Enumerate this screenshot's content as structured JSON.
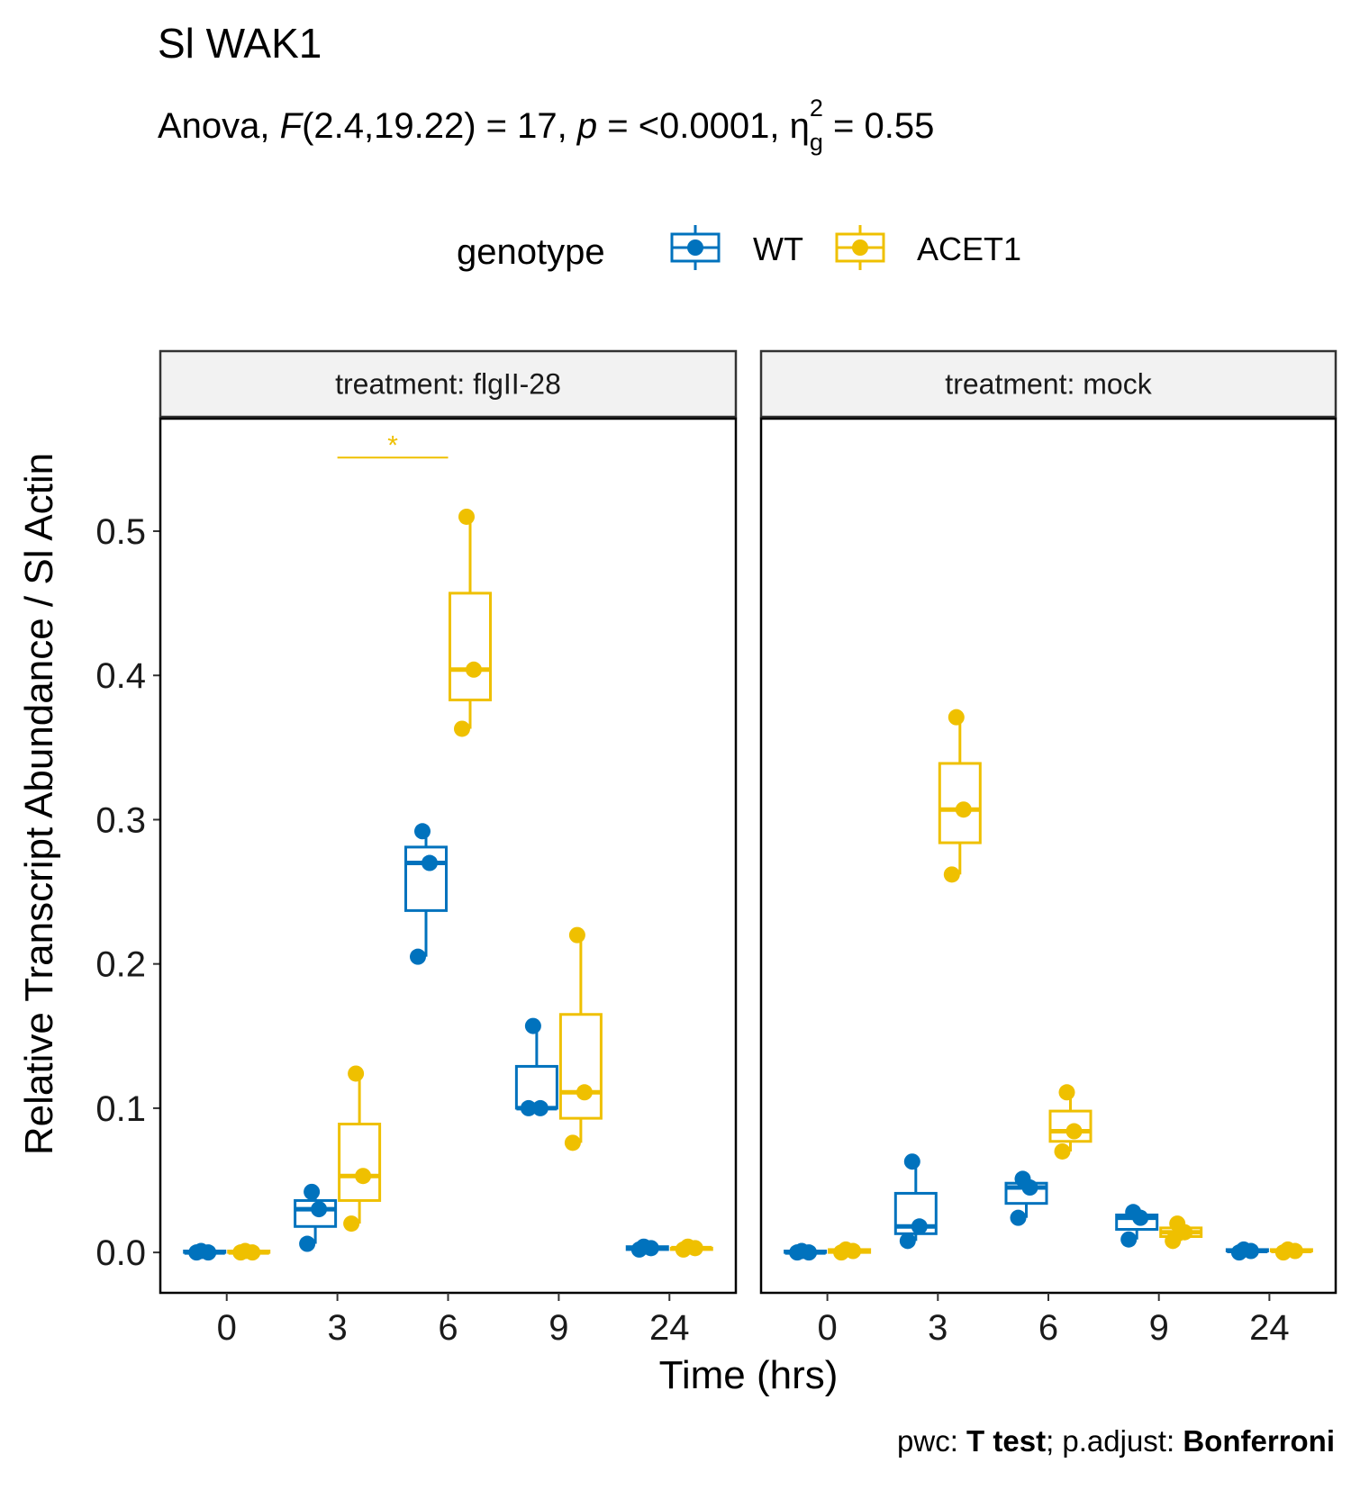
{
  "chart_data": {
    "type": "box",
    "title": "Sl WAK1",
    "subtitle": {
      "prefix": "Anova, ",
      "stat_symbol": "F",
      "df": "(2.4,19.22) = 17, ",
      "p_symbol": "p",
      "p_text": " = <0.0001, ",
      "eta_symbol": "η",
      "eta_sub": "g",
      "eta_sup": "2",
      "eta_text": " = 0.55"
    },
    "legend": {
      "title": "genotype",
      "placement": "top",
      "entries": [
        {
          "label": "WT",
          "color": "#0072BD"
        },
        {
          "label": "ACET1",
          "color": "#EFC000"
        }
      ]
    },
    "xlabel": "Time (hrs)",
    "ylabel": "Relative Transcript Abundance / Sl Actin",
    "categories": [
      "0",
      "3",
      "6",
      "9",
      "24"
    ],
    "yticks": [
      "0.0",
      "0.1",
      "0.2",
      "0.3",
      "0.4",
      "0.5"
    ],
    "ylim": [
      -0.028,
      0.578
    ],
    "colors": {
      "WT": "#0072BD",
      "ACET1": "#EFC000"
    },
    "facets": [
      {
        "label": "treatment: flgII-28",
        "groups": [
          {
            "time": "0",
            "genotype": "WT",
            "points": [
              0.0,
              0.0,
              0.001
            ],
            "box": [
              0.0,
              0.0,
              0.0,
              0.001,
              0.001
            ]
          },
          {
            "time": "0",
            "genotype": "ACET1",
            "points": [
              0.0,
              0.0,
              0.001
            ],
            "box": [
              0.0,
              0.0,
              0.0,
              0.001,
              0.001
            ]
          },
          {
            "time": "3",
            "genotype": "WT",
            "points": [
              0.006,
              0.03,
              0.042
            ],
            "box": [
              0.006,
              0.018,
              0.03,
              0.036,
              0.042
            ]
          },
          {
            "time": "3",
            "genotype": "ACET1",
            "points": [
              0.02,
              0.053,
              0.124
            ],
            "box": [
              0.02,
              0.036,
              0.053,
              0.089,
              0.124
            ]
          },
          {
            "time": "6",
            "genotype": "WT",
            "points": [
              0.205,
              0.27,
              0.292
            ],
            "box": [
              0.205,
              0.237,
              0.27,
              0.281,
              0.292
            ]
          },
          {
            "time": "6",
            "genotype": "ACET1",
            "points": [
              0.363,
              0.404,
              0.51
            ],
            "box": [
              0.363,
              0.383,
              0.404,
              0.457,
              0.51
            ]
          },
          {
            "time": "9",
            "genotype": "WT",
            "points": [
              0.1,
              0.1,
              0.157
            ],
            "box": [
              0.1,
              0.1,
              0.1,
              0.129,
              0.157
            ]
          },
          {
            "time": "9",
            "genotype": "ACET1",
            "points": [
              0.076,
              0.111,
              0.22
            ],
            "box": [
              0.076,
              0.093,
              0.111,
              0.165,
              0.22
            ]
          },
          {
            "time": "24",
            "genotype": "WT",
            "points": [
              0.002,
              0.003,
              0.004
            ],
            "box": [
              0.002,
              0.002,
              0.003,
              0.004,
              0.004
            ]
          },
          {
            "time": "24",
            "genotype": "ACET1",
            "points": [
              0.002,
              0.003,
              0.004
            ],
            "box": [
              0.002,
              0.002,
              0.003,
              0.003,
              0.004
            ]
          }
        ],
        "significance": [
          {
            "from": "3",
            "to": "6",
            "genotype": "ACET1",
            "label": "*",
            "y": 0.551
          }
        ]
      },
      {
        "label": "treatment: mock",
        "groups": [
          {
            "time": "0",
            "genotype": "WT",
            "points": [
              0.0,
              0.0,
              0.001
            ],
            "box": [
              0.0,
              0.0,
              0.0,
              0.001,
              0.001
            ]
          },
          {
            "time": "0",
            "genotype": "ACET1",
            "points": [
              0.0,
              0.001,
              0.002
            ],
            "box": [
              0.0,
              0.0,
              0.001,
              0.002,
              0.002
            ]
          },
          {
            "time": "3",
            "genotype": "WT",
            "points": [
              0.008,
              0.018,
              0.063
            ],
            "box": [
              0.008,
              0.013,
              0.018,
              0.041,
              0.063
            ]
          },
          {
            "time": "3",
            "genotype": "ACET1",
            "points": [
              0.262,
              0.307,
              0.371
            ],
            "box": [
              0.262,
              0.284,
              0.307,
              0.339,
              0.371
            ]
          },
          {
            "time": "6",
            "genotype": "WT",
            "points": [
              0.024,
              0.045,
              0.051
            ],
            "box": [
              0.024,
              0.034,
              0.045,
              0.048,
              0.051
            ]
          },
          {
            "time": "6",
            "genotype": "ACET1",
            "points": [
              0.07,
              0.084,
              0.111
            ],
            "box": [
              0.07,
              0.077,
              0.084,
              0.098,
              0.111
            ]
          },
          {
            "time": "9",
            "genotype": "WT",
            "points": [
              0.009,
              0.024,
              0.028
            ],
            "box": [
              0.009,
              0.016,
              0.024,
              0.026,
              0.028
            ]
          },
          {
            "time": "9",
            "genotype": "ACET1",
            "points": [
              0.008,
              0.014,
              0.02
            ],
            "box": [
              0.008,
              0.011,
              0.014,
              0.017,
              0.02
            ]
          },
          {
            "time": "24",
            "genotype": "WT",
            "points": [
              0.0,
              0.001,
              0.002
            ],
            "box": [
              0.0,
              0.001,
              0.001,
              0.002,
              0.002
            ]
          },
          {
            "time": "24",
            "genotype": "ACET1",
            "points": [
              0.0,
              0.001,
              0.002
            ],
            "box": [
              0.0,
              0.001,
              0.001,
              0.002,
              0.002
            ]
          }
        ],
        "significance": []
      }
    ],
    "caption": {
      "p1": "pwc: ",
      "b1": "T test",
      "p2": "; p.adjust: ",
      "b2": "Bonferroni"
    },
    "grid": false
  }
}
